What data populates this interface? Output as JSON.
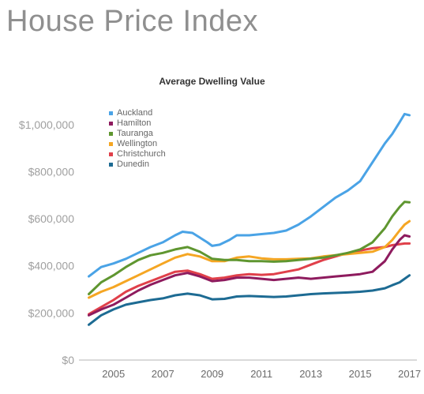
{
  "page": {
    "title": "House Price Index"
  },
  "chart_data": {
    "type": "line",
    "title": "Average Dwelling Value",
    "xlabel": "",
    "ylabel": "",
    "xlim": [
      2003.6,
      2017.3
    ],
    "ylim": [
      0,
      1100000
    ],
    "xticks": [
      2005,
      2007,
      2009,
      2011,
      2013,
      2015,
      2017
    ],
    "xtick_labels": [
      "2005",
      "2007",
      "2009",
      "2011",
      "2013",
      "2015",
      "2017"
    ],
    "yticks": [
      0,
      200000,
      400000,
      600000,
      800000,
      1000000
    ],
    "ytick_labels": [
      "$0",
      "$200,000",
      "$400,000",
      "$600,000",
      "$800,000",
      "$1,000,000"
    ],
    "grid": false,
    "legend_position": "top-left",
    "series": [
      {
        "name": "Auckland",
        "color": "#4aa3e6",
        "x": [
          2004.0,
          2004.5,
          2005.0,
          2005.5,
          2006.0,
          2006.5,
          2007.0,
          2007.5,
          2007.8,
          2008.2,
          2008.5,
          2008.8,
          2009.0,
          2009.3,
          2009.7,
          2010.0,
          2010.5,
          2011.0,
          2011.5,
          2012.0,
          2012.5,
          2013.0,
          2013.5,
          2014.0,
          2014.5,
          2015.0,
          2015.5,
          2016.0,
          2016.3,
          2016.6,
          2016.8,
          2017.0
        ],
        "y": [
          355000,
          395000,
          410000,
          430000,
          455000,
          480000,
          500000,
          530000,
          545000,
          540000,
          520000,
          500000,
          485000,
          490000,
          510000,
          530000,
          530000,
          535000,
          540000,
          550000,
          575000,
          610000,
          650000,
          690000,
          720000,
          760000,
          840000,
          920000,
          960000,
          1010000,
          1045000,
          1040000
        ]
      },
      {
        "name": "Hamilton",
        "color": "#8e1b5e",
        "x": [
          2004.0,
          2004.5,
          2005.0,
          2005.5,
          2006.0,
          2006.5,
          2007.0,
          2007.5,
          2008.0,
          2008.5,
          2009.0,
          2009.5,
          2010.0,
          2010.5,
          2011.0,
          2011.5,
          2012.0,
          2012.5,
          2013.0,
          2013.5,
          2014.0,
          2014.5,
          2015.0,
          2015.5,
          2016.0,
          2016.3,
          2016.6,
          2016.8,
          2017.0
        ],
        "y": [
          190000,
          215000,
          235000,
          265000,
          295000,
          320000,
          340000,
          360000,
          370000,
          355000,
          335000,
          340000,
          350000,
          350000,
          345000,
          340000,
          345000,
          350000,
          345000,
          350000,
          355000,
          360000,
          365000,
          375000,
          420000,
          470000,
          510000,
          530000,
          525000
        ]
      },
      {
        "name": "Tauranga",
        "color": "#5f9630",
        "x": [
          2004.0,
          2004.5,
          2005.0,
          2005.5,
          2006.0,
          2006.5,
          2007.0,
          2007.5,
          2008.0,
          2008.5,
          2009.0,
          2009.5,
          2010.0,
          2010.5,
          2011.0,
          2011.5,
          2012.0,
          2012.5,
          2013.0,
          2013.5,
          2014.0,
          2014.5,
          2015.0,
          2015.5,
          2016.0,
          2016.3,
          2016.6,
          2016.8,
          2017.0
        ],
        "y": [
          280000,
          330000,
          360000,
          395000,
          425000,
          445000,
          455000,
          470000,
          480000,
          460000,
          430000,
          425000,
          425000,
          420000,
          420000,
          418000,
          420000,
          425000,
          430000,
          435000,
          445000,
          455000,
          470000,
          500000,
          560000,
          610000,
          650000,
          672000,
          670000
        ]
      },
      {
        "name": "Wellington",
        "color": "#f5a623",
        "x": [
          2004.0,
          2004.5,
          2005.0,
          2005.5,
          2006.0,
          2006.5,
          2007.0,
          2007.5,
          2008.0,
          2008.5,
          2009.0,
          2009.5,
          2010.0,
          2010.5,
          2011.0,
          2011.5,
          2012.0,
          2012.5,
          2013.0,
          2013.5,
          2014.0,
          2014.5,
          2015.0,
          2015.5,
          2016.0,
          2016.3,
          2016.6,
          2016.8,
          2017.0
        ],
        "y": [
          265000,
          290000,
          310000,
          335000,
          360000,
          385000,
          410000,
          435000,
          450000,
          440000,
          420000,
          420000,
          435000,
          440000,
          432000,
          428000,
          428000,
          430000,
          432000,
          440000,
          445000,
          450000,
          455000,
          460000,
          480000,
          510000,
          550000,
          575000,
          590000
        ]
      },
      {
        "name": "Christchurch",
        "color": "#e0404a",
        "x": [
          2004.0,
          2004.5,
          2005.0,
          2005.5,
          2006.0,
          2006.5,
          2007.0,
          2007.5,
          2008.0,
          2008.5,
          2009.0,
          2009.5,
          2010.0,
          2010.5,
          2011.0,
          2011.5,
          2012.0,
          2012.5,
          2013.0,
          2013.5,
          2014.0,
          2014.5,
          2015.0,
          2015.5,
          2016.0,
          2016.3,
          2016.6,
          2016.8,
          2017.0
        ],
        "y": [
          195000,
          225000,
          255000,
          290000,
          315000,
          335000,
          355000,
          375000,
          380000,
          365000,
          345000,
          350000,
          360000,
          365000,
          362000,
          365000,
          375000,
          385000,
          405000,
          425000,
          440000,
          455000,
          465000,
          475000,
          480000,
          488000,
          492000,
          495000,
          495000
        ]
      },
      {
        "name": "Dunedin",
        "color": "#1d6b93",
        "x": [
          2004.0,
          2004.5,
          2005.0,
          2005.5,
          2006.0,
          2006.5,
          2007.0,
          2007.5,
          2008.0,
          2008.5,
          2009.0,
          2009.5,
          2010.0,
          2010.5,
          2011.0,
          2011.5,
          2012.0,
          2012.5,
          2013.0,
          2013.5,
          2014.0,
          2014.5,
          2015.0,
          2015.5,
          2016.0,
          2016.3,
          2016.6,
          2016.8,
          2017.0
        ],
        "y": [
          150000,
          190000,
          215000,
          235000,
          245000,
          255000,
          262000,
          275000,
          282000,
          275000,
          258000,
          260000,
          270000,
          272000,
          270000,
          268000,
          270000,
          275000,
          280000,
          283000,
          285000,
          287000,
          290000,
          295000,
          305000,
          318000,
          330000,
          345000,
          360000
        ]
      }
    ]
  }
}
